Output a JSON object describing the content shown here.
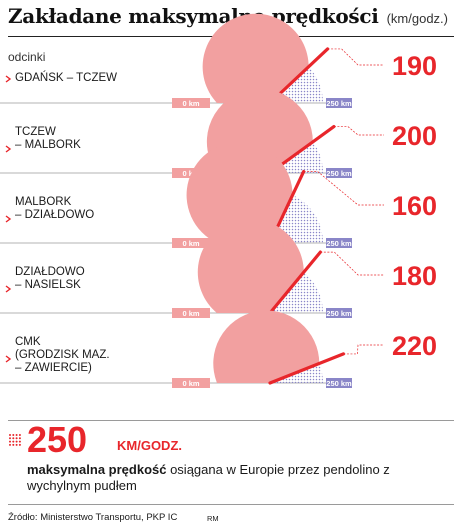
{
  "header": {
    "title": "Zakładane maksymalne prędkości",
    "unit": "(km/godz.)",
    "subhead": "odcinki"
  },
  "colors": {
    "accent": "#e8262b",
    "gauge_fill": "#f2a0a0",
    "gauge_dots": "#8a86c8",
    "needle": "#e8262b"
  },
  "chart_data": {
    "type": "gauge",
    "axis_min_label": "0 km",
    "axis_max_label": "250 km",
    "range": [
      0,
      250
    ],
    "segments": [
      {
        "label_lines": [
          "GDAŃSK – TCZEW"
        ],
        "value": 190
      },
      {
        "label_lines": [
          "TCZEW",
          "– MALBORK"
        ],
        "value": 200
      },
      {
        "label_lines": [
          "MALBORK",
          "– DZIAŁDOWO"
        ],
        "value": 160
      },
      {
        "label_lines": [
          "DZIAŁDOWO",
          "– NASIELSK"
        ],
        "value": 180
      },
      {
        "label_lines": [
          "CMK",
          "(GRODZISK MAZ.",
          "– ZAWIERCIE)"
        ],
        "value": 220
      }
    ]
  },
  "highlight": {
    "value": "250",
    "unit": "KM/GODZ.",
    "note_bold": "maksymalna prędkość",
    "note_rest": " osiągana w Europie przez pendolino z wychylnym pudłem"
  },
  "footer": {
    "source": "Źródło: Ministerstwo Transportu, PKP IC",
    "credit": "RM"
  }
}
